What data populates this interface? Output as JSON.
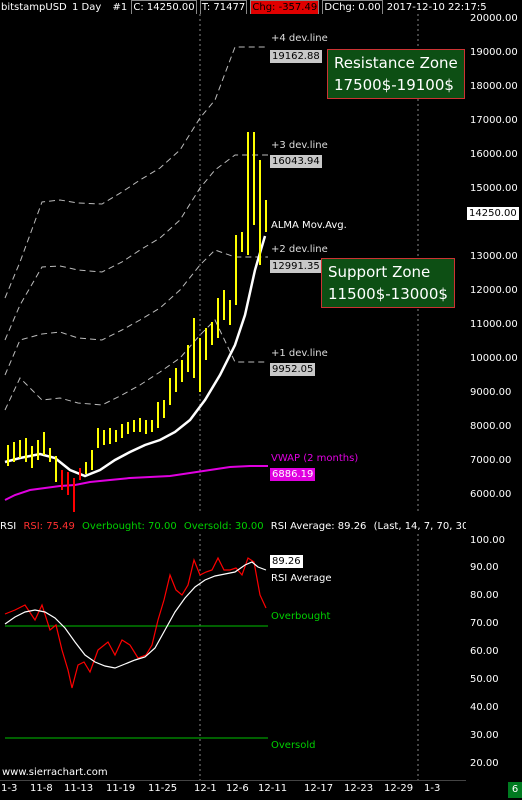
{
  "header": {
    "symbol": "bitstampUSD",
    "period": "1 Day",
    "chart_num": "#1",
    "close": "C: 14250.00",
    "trades": "T: 71477",
    "chg": "Chg: -357.49",
    "dchg": "DChg: 0.00",
    "datetime": "2017-12-10 22:17:5"
  },
  "price_axis": [
    "20000.00",
    "19000.00",
    "18000.00",
    "17000.00",
    "16000.00",
    "15000.00",
    "14000.00",
    "13000.00",
    "12000.00",
    "11000.00",
    "10000.00",
    "9000.00",
    "8000.00",
    "7000.00",
    "6000.00"
  ],
  "current_price": "14250.00",
  "annotations": {
    "dev4": "+4 dev.line",
    "dev4_val": "19162.88",
    "dev3": "+3 dev.line",
    "dev3_val": "16043.94",
    "alma": "ALMA Mov.Avg.",
    "dev2": "+2 dev.line",
    "dev2_val": "12991.35",
    "dev1": "+1 dev.line",
    "dev1_val": "9952.05",
    "vwap": "VWAP (2 months)",
    "vwap_val": "6886.19"
  },
  "zones": {
    "resistance_title": "Resistance Zone",
    "resistance_range": "17500$-19100$",
    "support_title": "Support Zone",
    "support_range": "11500$-13000$"
  },
  "rsi": {
    "header_name": "RSI",
    "rsi_val": "RSI: 75.49",
    "overbought": "Overbought: 70.00",
    "oversold": "Oversold: 30.00",
    "rsi_avg": "RSI Average: 89.26",
    "params": "(Last, 14, 7, 70, 30",
    "avg_box": "89.26",
    "avg_label": "RSI Average",
    "overbought_label": "Overbought",
    "oversold_label": "Oversold",
    "axis": [
      "100.00",
      "90.00",
      "80.00",
      "70.00",
      "60.00",
      "50.00",
      "40.00",
      "30.00",
      "20.00"
    ]
  },
  "date_axis": [
    "1-3",
    "11-8",
    "11-13",
    "11-19",
    "11-25",
    "12-1",
    "12-6",
    "12-11",
    "12-17",
    "12-23",
    "12-29",
    "1-3"
  ],
  "watermark": "www.sierrachart.com",
  "chartbook_number": "6",
  "colors": {
    "candle": "#ffff00",
    "alma": "#ffffff",
    "vwap": "#e000e0",
    "rsi": "#ff0000",
    "rsi_avg": "#ffffff",
    "level_line": "#00c000",
    "zone_bg": "#0d4f14",
    "zone_border": "#cc3333",
    "chg_bg": "#e00000"
  }
}
